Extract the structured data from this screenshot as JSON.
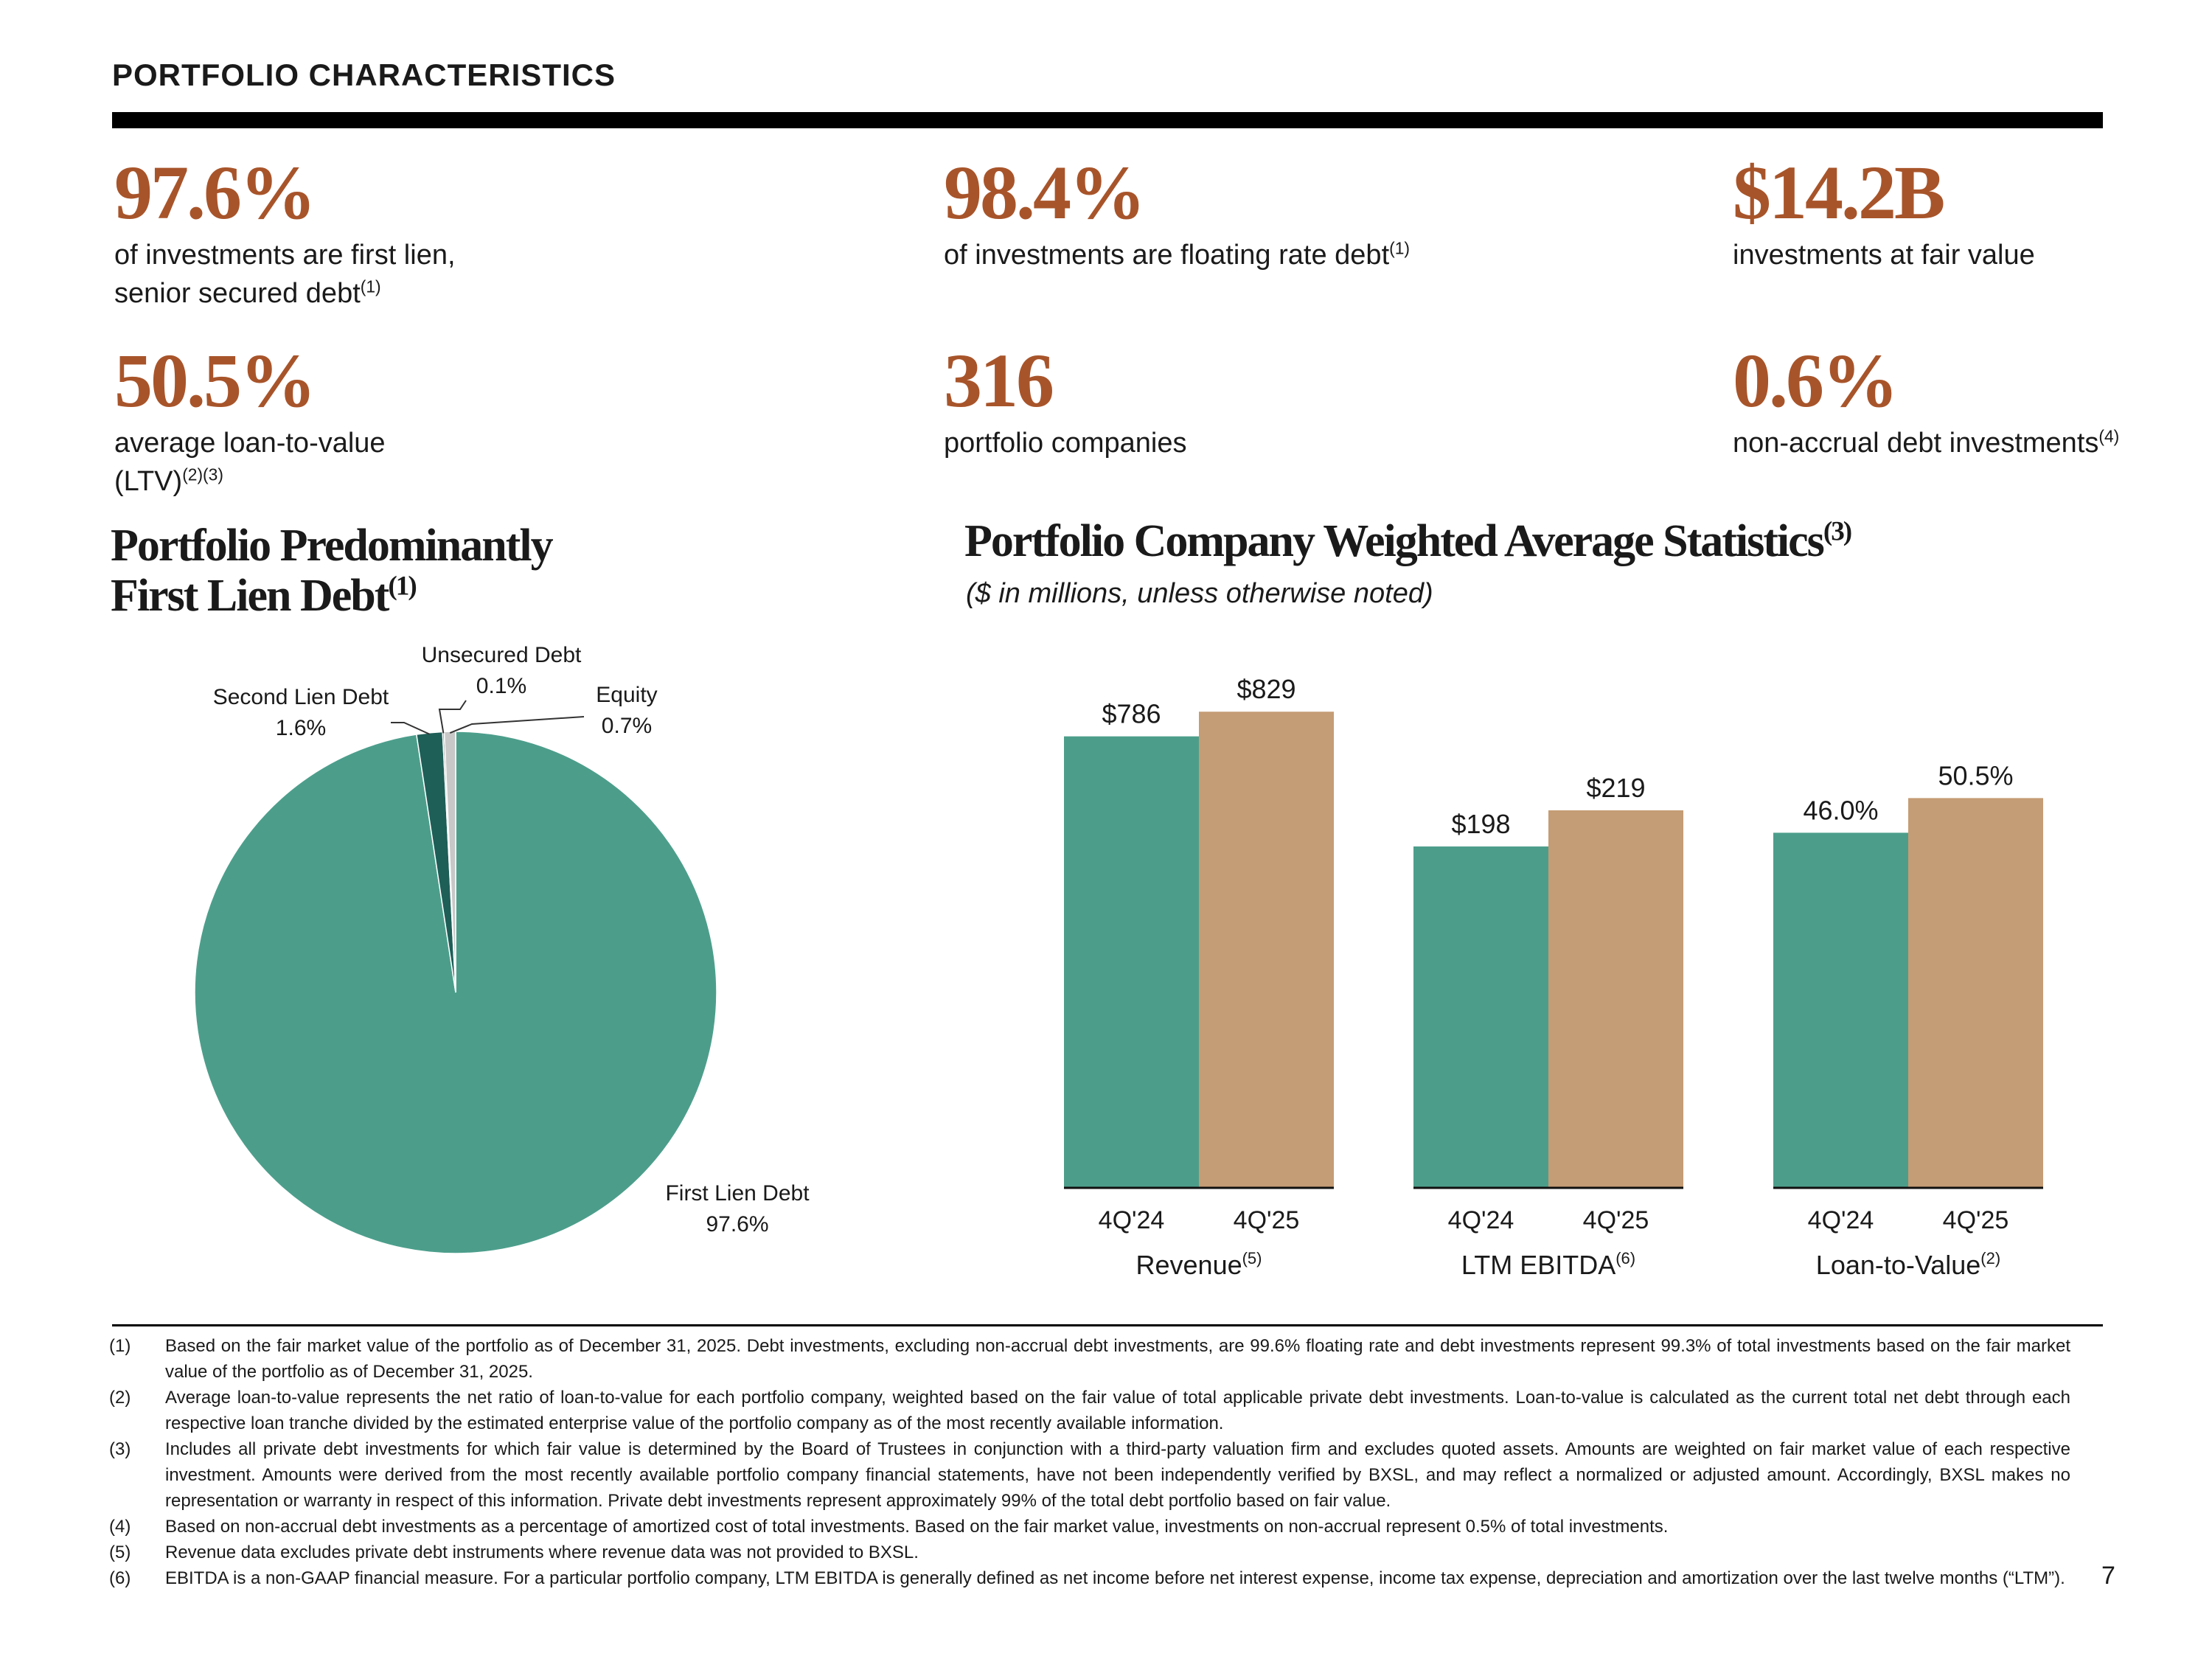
{
  "header": {
    "title": "PORTFOLIO CHARACTERISTICS"
  },
  "stats": [
    {
      "value": "97.6%",
      "label_line1": "of investments are first lien,",
      "label_line2": "senior secured debt",
      "note": "(1)"
    },
    {
      "value": "98.4%",
      "label_line1": "of investments are floating rate debt",
      "note": "(1)"
    },
    {
      "value": "$14.2B",
      "label_line1": "investments at fair value"
    },
    {
      "value": "50.5%",
      "label_line1": "average loan-to-value",
      "label_line2": "(LTV)",
      "note": "(2)(3)"
    },
    {
      "value": "316",
      "label_line1": "portfolio companies"
    },
    {
      "value": "0.6%",
      "label_line1": "non-accrual debt investments",
      "note": "(4)"
    }
  ],
  "pie_section": {
    "title_line1": "Portfolio Predominantly",
    "title_line2": "First Lien Debt",
    "note": "(1)"
  },
  "bar_section": {
    "title": "Portfolio Company Weighted Average Statistics",
    "note": "(3)",
    "subtitle": "($ in millions, unless otherwise noted)"
  },
  "chart_data": [
    {
      "type": "pie",
      "title": "Portfolio Predominantly First Lien Debt",
      "slices": [
        {
          "name": "First Lien Debt",
          "value": 97.6,
          "label": "97.6%",
          "color": "#4C9E8B"
        },
        {
          "name": "Second Lien Debt",
          "value": 1.6,
          "label": "1.6%",
          "color": "#1E5F58"
        },
        {
          "name": "Unsecured Debt",
          "value": 0.1,
          "label": "0.1%",
          "color": "#7A7A7A"
        },
        {
          "name": "Equity",
          "value": 0.7,
          "label": "0.7%",
          "color": "#C8C8C8"
        }
      ]
    },
    {
      "type": "bar",
      "title": "Portfolio Company Weighted Average Statistics",
      "series_names": [
        "4Q'24",
        "4Q'25"
      ],
      "colors": [
        "#4C9E8B",
        "#C49C75"
      ],
      "groups": [
        {
          "name": "Revenue",
          "note": "(5)",
          "values": [
            786,
            829
          ],
          "labels": [
            "$786",
            "$829"
          ],
          "ymax": 900
        },
        {
          "name": "LTM EBITDA",
          "note": "(6)",
          "values": [
            198,
            219
          ],
          "labels": [
            "$198",
            "$219"
          ],
          "ymax": 300
        },
        {
          "name": "Loan-to-Value",
          "note": "(2)",
          "values": [
            46.0,
            50.5
          ],
          "labels": [
            "46.0%",
            "50.5%"
          ],
          "ymax": 67
        }
      ]
    }
  ],
  "footnotes": [
    {
      "num": "(1)",
      "text": "Based on the fair market value of the portfolio as of December 31, 2025. Debt investments, excluding non-accrual debt investments, are 99.6% floating rate and debt investments represent 99.3% of total investments based on the fair market value of the portfolio as of December 31, 2025."
    },
    {
      "num": "(2)",
      "text": "Average loan-to-value represents the net ratio of loan-to-value for each portfolio company, weighted based on the fair value of total applicable private debt investments. Loan-to-value is calculated as the current total net debt through each respective loan tranche divided by the estimated enterprise value of the portfolio company as of the most recently available information."
    },
    {
      "num": "(3)",
      "text": "Includes all private debt investments for which fair value is determined by the Board of Trustees in conjunction with a third-party valuation firm and excludes quoted assets. Amounts are weighted on fair market value of each respective investment. Amounts were derived from the most recently available portfolio company financial statements, have not been independently verified by BXSL, and may reflect a normalized or adjusted amount. Accordingly, BXSL makes no representation or warranty in respect of this information. Private debt investments represent approximately 99% of the total debt portfolio based on fair value."
    },
    {
      "num": "(4)",
      "text": "Based on non-accrual debt investments as a percentage of amortized cost of total investments. Based on the fair market value, investments on non-accrual represent 0.5% of total investments."
    },
    {
      "num": "(5)",
      "text": "Revenue data excludes private debt instruments where revenue data was not provided to BXSL."
    },
    {
      "num": "(6)",
      "text": "EBITDA is a non-GAAP financial measure. For a particular portfolio company, LTM EBITDA is generally defined as net income before net interest expense, income tax expense, depreciation and amortization over the last twelve months (“LTM”)."
    }
  ],
  "page_number": "7"
}
